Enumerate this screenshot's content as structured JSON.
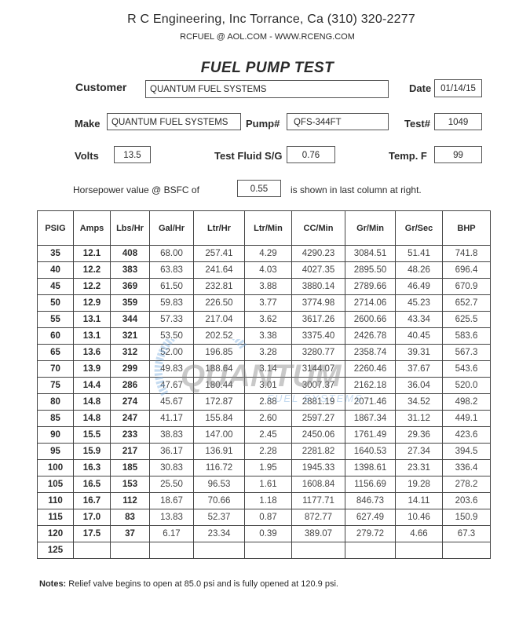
{
  "header": {
    "company_line": "R C Engineering, Inc  Torrance,  Ca  (310) 320-2277",
    "contact_line": "RCFUEL @ AOL.COM -  WWW.RCENG.COM",
    "title": "FUEL PUMP TEST"
  },
  "fields": {
    "customer_label": "Customer",
    "customer": "QUANTUM FUEL SYSTEMS",
    "date_label": "Date",
    "date": "01/14/15",
    "make_label": "Make",
    "make": "QUANTUM FUEL SYSTEMS",
    "pump_label": "Pump#",
    "pump": "QFS-344FT",
    "test_label": "Test#",
    "test": "1049",
    "volts_label": "Volts",
    "volts": "13.5",
    "fluid_label": "Test Fluid S/G",
    "fluid": "0.76",
    "temp_label": "Temp.  F",
    "temp": "99",
    "bsfc_prefix": "Horsepower value @  BSFC of",
    "bsfc": "0.55",
    "bsfc_suffix": "is shown in last column at right."
  },
  "table": {
    "columns": [
      "PSIG",
      "Amps",
      "Lbs/Hr",
      "Gal/Hr",
      "Ltr/Hr",
      "Ltr/Min",
      "CC/Min",
      "Gr/Min",
      "Gr/Sec",
      "BHP"
    ],
    "rows": [
      [
        "35",
        "12.1",
        "408",
        "68.00",
        "257.41",
        "4.29",
        "4290.23",
        "3084.51",
        "51.41",
        "741.8"
      ],
      [
        "40",
        "12.2",
        "383",
        "63.83",
        "241.64",
        "4.03",
        "4027.35",
        "2895.50",
        "48.26",
        "696.4"
      ],
      [
        "45",
        "12.2",
        "369",
        "61.50",
        "232.81",
        "3.88",
        "3880.14",
        "2789.66",
        "46.49",
        "670.9"
      ],
      [
        "50",
        "12.9",
        "359",
        "59.83",
        "226.50",
        "3.77",
        "3774.98",
        "2714.06",
        "45.23",
        "652.7"
      ],
      [
        "55",
        "13.1",
        "344",
        "57.33",
        "217.04",
        "3.62",
        "3617.26",
        "2600.66",
        "43.34",
        "625.5"
      ],
      [
        "60",
        "13.1",
        "321",
        "53.50",
        "202.52",
        "3.38",
        "3375.40",
        "2426.78",
        "40.45",
        "583.6"
      ],
      [
        "65",
        "13.6",
        "312",
        "52.00",
        "196.85",
        "3.28",
        "3280.77",
        "2358.74",
        "39.31",
        "567.3"
      ],
      [
        "70",
        "13.9",
        "299",
        "49.83",
        "188.64",
        "3.14",
        "3144.07",
        "2260.46",
        "37.67",
        "543.6"
      ],
      [
        "75",
        "14.4",
        "286",
        "47.67",
        "180.44",
        "3.01",
        "3007.37",
        "2162.18",
        "36.04",
        "520.0"
      ],
      [
        "80",
        "14.8",
        "274",
        "45.67",
        "172.87",
        "2.88",
        "2881.19",
        "2071.46",
        "34.52",
        "498.2"
      ],
      [
        "85",
        "14.8",
        "247",
        "41.17",
        "155.84",
        "2.60",
        "2597.27",
        "1867.34",
        "31.12",
        "449.1"
      ],
      [
        "90",
        "15.5",
        "233",
        "38.83",
        "147.00",
        "2.45",
        "2450.06",
        "1761.49",
        "29.36",
        "423.6"
      ],
      [
        "95",
        "15.9",
        "217",
        "36.17",
        "136.91",
        "2.28",
        "2281.82",
        "1640.53",
        "27.34",
        "394.5"
      ],
      [
        "100",
        "16.3",
        "185",
        "30.83",
        "116.72",
        "1.95",
        "1945.33",
        "1398.61",
        "23.31",
        "336.4"
      ],
      [
        "105",
        "16.5",
        "153",
        "25.50",
        "96.53",
        "1.61",
        "1608.84",
        "1156.69",
        "19.28",
        "278.2"
      ],
      [
        "110",
        "16.7",
        "112",
        "18.67",
        "70.66",
        "1.18",
        "1177.71",
        "846.73",
        "14.11",
        "203.6"
      ],
      [
        "115",
        "17.0",
        "83",
        "13.83",
        "52.37",
        "0.87",
        "872.77",
        "627.49",
        "10.46",
        "150.9"
      ],
      [
        "120",
        "17.5",
        "37",
        "6.17",
        "23.34",
        "0.39",
        "389.07",
        "279.72",
        "4.66",
        "67.3"
      ],
      [
        "125",
        "",
        "",
        "",
        "",
        "",
        "",
        "",
        "",
        ""
      ]
    ]
  },
  "watermark": {
    "text": "QUANTUM",
    "subtext": "FUEL SYSTEMS",
    "color": "#7fb0e0"
  },
  "notes": {
    "label": "Notes:",
    "text": "Relief valve begins to open at 85.0 psi and is fully opened at 120.9 psi."
  }
}
